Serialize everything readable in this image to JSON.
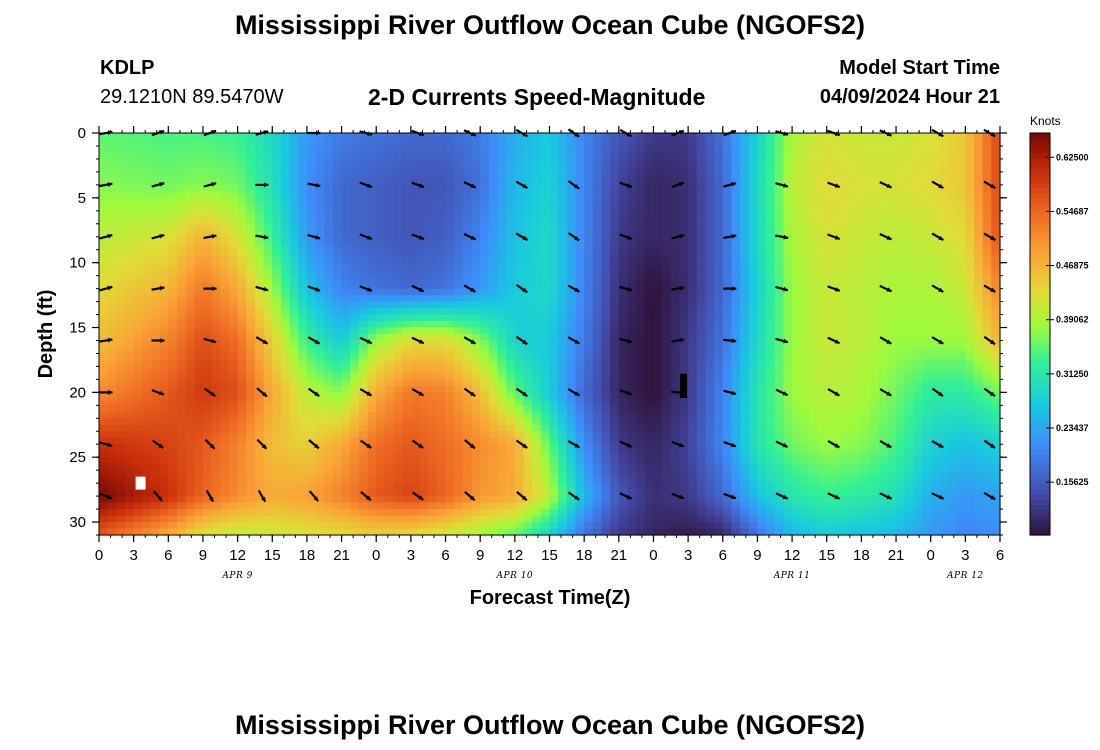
{
  "header": {
    "title": "Mississippi River Outflow Ocean Cube (NGOFS2)",
    "station_id": "KDLP",
    "station_coords": "29.1210N  89.5470W",
    "subtitle": "2-D Currents Speed-Magnitude",
    "model_start_label": "Model Start Time",
    "model_start_value": "04/09/2024 Hour 21"
  },
  "footer": {
    "title": "Mississippi River Outflow Ocean Cube (NGOFS2)"
  },
  "chart_data": {
    "type": "heatmap",
    "title": "2-D Currents Speed-Magnitude",
    "xlabel": "Forecast Time(Z)",
    "ylabel": "Depth (ft)",
    "x_range_hours": [
      0,
      78
    ],
    "y_range_ft": [
      0,
      31
    ],
    "x_ticks": [
      {
        "h": 0,
        "label": "0"
      },
      {
        "h": 3,
        "label": "3"
      },
      {
        "h": 6,
        "label": "6"
      },
      {
        "h": 9,
        "label": "9"
      },
      {
        "h": 12,
        "label": "12"
      },
      {
        "h": 15,
        "label": "15"
      },
      {
        "h": 18,
        "label": "18"
      },
      {
        "h": 21,
        "label": "21"
      },
      {
        "h": 24,
        "label": "0"
      },
      {
        "h": 27,
        "label": "3"
      },
      {
        "h": 30,
        "label": "6"
      },
      {
        "h": 33,
        "label": "9"
      },
      {
        "h": 36,
        "label": "12"
      },
      {
        "h": 39,
        "label": "15"
      },
      {
        "h": 42,
        "label": "18"
      },
      {
        "h": 45,
        "label": "21"
      },
      {
        "h": 48,
        "label": "0"
      },
      {
        "h": 51,
        "label": "3"
      },
      {
        "h": 54,
        "label": "6"
      },
      {
        "h": 57,
        "label": "9"
      },
      {
        "h": 60,
        "label": "12"
      },
      {
        "h": 63,
        "label": "15"
      },
      {
        "h": 66,
        "label": "18"
      },
      {
        "h": 69,
        "label": "21"
      },
      {
        "h": 72,
        "label": "0"
      },
      {
        "h": 75,
        "label": "3"
      },
      {
        "h": 78,
        "label": "6"
      }
    ],
    "date_labels": [
      {
        "h": 12,
        "label": "APR 9"
      },
      {
        "h": 36,
        "label": "APR 10"
      },
      {
        "h": 60,
        "label": "APR 11"
      },
      {
        "h": 75,
        "label": "APR 12"
      }
    ],
    "y_ticks": [
      0,
      5,
      10,
      15,
      20,
      25,
      30
    ],
    "colorbar": {
      "unit": "Knots",
      "range": [
        0.08,
        0.66
      ],
      "labels": [
        "0.62500",
        "0.54687",
        "0.46875",
        "0.39062",
        "0.31250",
        "0.23437",
        "0.15625"
      ],
      "label_values": [
        0.625,
        0.54687,
        0.46875,
        0.39062,
        0.3125,
        0.23437,
        0.15625
      ]
    },
    "depths_ft": [
      0,
      4,
      8,
      12,
      16,
      20,
      24,
      28,
      31
    ],
    "speed_times_h": [
      0,
      6,
      9,
      12,
      15,
      18,
      21,
      24,
      27,
      30,
      33,
      36,
      39,
      42,
      45,
      48,
      51,
      54,
      57,
      60,
      63,
      66,
      69,
      72,
      75,
      78
    ],
    "speed_knots": [
      [
        0.35,
        0.34,
        0.34,
        0.33,
        0.29,
        0.22,
        0.19,
        0.18,
        0.17,
        0.17,
        0.19,
        0.24,
        0.27,
        0.2,
        0.15,
        0.12,
        0.12,
        0.18,
        0.28,
        0.39,
        0.42,
        0.41,
        0.41,
        0.42,
        0.45,
        0.58
      ],
      [
        0.37,
        0.36,
        0.37,
        0.36,
        0.3,
        0.21,
        0.17,
        0.16,
        0.15,
        0.15,
        0.18,
        0.25,
        0.28,
        0.2,
        0.13,
        0.1,
        0.11,
        0.17,
        0.29,
        0.4,
        0.43,
        0.42,
        0.42,
        0.43,
        0.45,
        0.58
      ],
      [
        0.4,
        0.42,
        0.47,
        0.42,
        0.33,
        0.22,
        0.17,
        0.16,
        0.15,
        0.16,
        0.2,
        0.26,
        0.29,
        0.2,
        0.12,
        0.1,
        0.11,
        0.17,
        0.29,
        0.39,
        0.42,
        0.41,
        0.4,
        0.41,
        0.43,
        0.57
      ],
      [
        0.43,
        0.47,
        0.53,
        0.48,
        0.38,
        0.26,
        0.2,
        0.18,
        0.17,
        0.18,
        0.22,
        0.27,
        0.29,
        0.2,
        0.11,
        0.08,
        0.11,
        0.17,
        0.28,
        0.38,
        0.41,
        0.4,
        0.39,
        0.39,
        0.41,
        0.52
      ],
      [
        0.46,
        0.52,
        0.57,
        0.54,
        0.44,
        0.33,
        0.27,
        0.38,
        0.43,
        0.43,
        0.37,
        0.28,
        0.27,
        0.19,
        0.1,
        0.08,
        0.12,
        0.18,
        0.29,
        0.38,
        0.41,
        0.4,
        0.38,
        0.38,
        0.38,
        0.47
      ],
      [
        0.51,
        0.56,
        0.59,
        0.57,
        0.48,
        0.4,
        0.37,
        0.48,
        0.53,
        0.52,
        0.46,
        0.35,
        0.27,
        0.17,
        0.1,
        0.08,
        0.12,
        0.2,
        0.31,
        0.38,
        0.4,
        0.39,
        0.36,
        0.32,
        0.32,
        0.36
      ],
      [
        0.6,
        0.58,
        0.56,
        0.52,
        0.46,
        0.44,
        0.48,
        0.54,
        0.56,
        0.54,
        0.51,
        0.48,
        0.35,
        0.21,
        0.12,
        0.1,
        0.13,
        0.2,
        0.31,
        0.36,
        0.38,
        0.37,
        0.34,
        0.28,
        0.26,
        0.28
      ],
      [
        0.66,
        0.6,
        0.55,
        0.51,
        0.48,
        0.49,
        0.52,
        0.56,
        0.58,
        0.55,
        0.5,
        0.48,
        0.4,
        0.25,
        0.15,
        0.11,
        0.12,
        0.17,
        0.26,
        0.31,
        0.33,
        0.32,
        0.3,
        0.24,
        0.22,
        0.23
      ],
      [
        0.56,
        0.48,
        0.42,
        0.4,
        0.41,
        0.42,
        0.43,
        0.44,
        0.43,
        0.41,
        0.38,
        0.35,
        0.28,
        0.18,
        0.12,
        0.1,
        0.09,
        0.1,
        0.18,
        0.25,
        0.27,
        0.26,
        0.25,
        0.22,
        0.2,
        0.21
      ]
    ],
    "vector_times_h": [
      0,
      4.5,
      9,
      13.5,
      18,
      22.5,
      27,
      31.5,
      36,
      40.5,
      45,
      49.5,
      54,
      58.5,
      63,
      67.5,
      72,
      76.5
    ],
    "vector_depths_ft": [
      0,
      4,
      8,
      12,
      16,
      20,
      24,
      28
    ],
    "vector_direction_deg": [
      [
        -10,
        -20,
        -20,
        -15,
        0,
        15,
        20,
        25,
        30,
        35,
        30,
        -20,
        -20,
        15,
        20,
        25,
        30,
        30
      ],
      [
        -10,
        -15,
        -15,
        0,
        10,
        20,
        20,
        25,
        30,
        35,
        20,
        -20,
        -15,
        15,
        20,
        25,
        30,
        30
      ],
      [
        -15,
        -15,
        -10,
        10,
        15,
        20,
        20,
        25,
        30,
        35,
        20,
        -15,
        -10,
        10,
        20,
        25,
        30,
        30
      ],
      [
        -15,
        -10,
        0,
        15,
        20,
        20,
        25,
        30,
        35,
        30,
        15,
        -10,
        0,
        15,
        20,
        25,
        30,
        30
      ],
      [
        -10,
        0,
        15,
        30,
        30,
        25,
        25,
        30,
        35,
        30,
        15,
        -10,
        5,
        15,
        25,
        30,
        30,
        35
      ],
      [
        0,
        20,
        35,
        40,
        35,
        30,
        30,
        35,
        35,
        30,
        20,
        5,
        15,
        25,
        30,
        30,
        35,
        35
      ],
      [
        15,
        35,
        45,
        45,
        40,
        35,
        35,
        40,
        35,
        30,
        25,
        20,
        20,
        25,
        30,
        30,
        30,
        35
      ],
      [
        20,
        50,
        60,
        60,
        50,
        40,
        35,
        40,
        40,
        35,
        25,
        20,
        20,
        25,
        25,
        25,
        25,
        30
      ]
    ],
    "markers": [
      {
        "h": 3.6,
        "depth_ft": 27,
        "color": "#ffffff"
      },
      {
        "h": 50.6,
        "depth_ft": 19.5,
        "color": "#000000"
      }
    ]
  }
}
